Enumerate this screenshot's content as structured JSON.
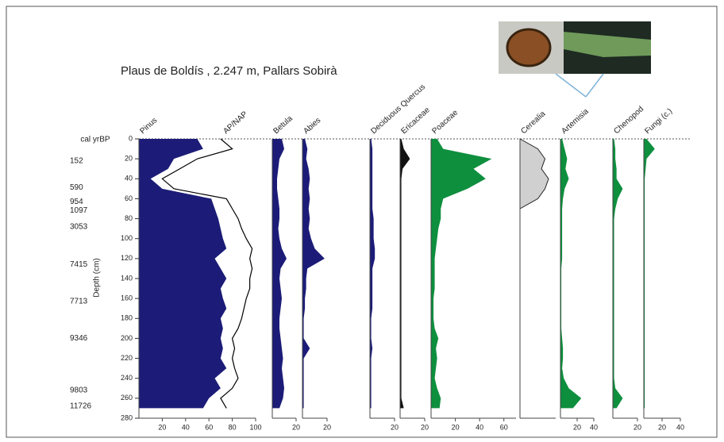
{
  "chart_data": {
    "type": "pollen-diagram",
    "title": "Plaus de Boldís , 2.247 m, Pallars Sobirà",
    "y_label": "Depth (cm)",
    "age_label": "cal yrBP",
    "ylim": [
      0,
      280
    ],
    "y_inverted": true,
    "yticks": [
      0,
      20,
      40,
      60,
      80,
      100,
      120,
      140,
      160,
      180,
      200,
      220,
      240,
      260,
      280
    ],
    "depth": [
      0,
      10,
      20,
      30,
      40,
      50,
      60,
      70,
      80,
      90,
      100,
      110,
      120,
      130,
      140,
      150,
      160,
      170,
      180,
      190,
      200,
      210,
      220,
      230,
      240,
      250,
      260,
      270
    ],
    "ages": [
      {
        "age": 152,
        "depth": 22
      },
      {
        "age": 590,
        "depth": 49
      },
      {
        "age": 954,
        "depth": 63
      },
      {
        "age": 1097,
        "depth": 72
      },
      {
        "age": 3053,
        "depth": 88
      },
      {
        "age": 7415,
        "depth": 126
      },
      {
        "age": 7713,
        "depth": 163
      },
      {
        "age": 9346,
        "depth": 200
      },
      {
        "age": 9803,
        "depth": 252
      },
      {
        "age": 11726,
        "depth": 268
      }
    ],
    "series": [
      {
        "name": "Pinus",
        "color": "#1c1c78",
        "xlim": [
          0,
          100
        ],
        "xticks": [
          20,
          40,
          60,
          80,
          100
        ],
        "values": [
          50,
          55,
          30,
          25,
          10,
          20,
          62,
          65,
          68,
          70,
          72,
          75,
          65,
          70,
          75,
          70,
          72,
          75,
          70,
          72,
          70,
          72,
          70,
          75,
          65,
          70,
          60,
          55
        ],
        "curve": {
          "name": "AP/NAP",
          "color": "#000000",
          "values": [
            70,
            80,
            50,
            35,
            20,
            30,
            75,
            80,
            85,
            88,
            92,
            97,
            95,
            97,
            95,
            95,
            92,
            90,
            88,
            85,
            80,
            82,
            80,
            82,
            85,
            80,
            70,
            75
          ]
        }
      },
      {
        "name": "Betula",
        "color": "#1c1c78",
        "xlim": [
          0,
          20
        ],
        "xticks": [
          20
        ],
        "values": [
          8,
          10,
          6,
          5,
          4,
          4,
          5,
          6,
          6,
          5,
          6,
          8,
          12,
          7,
          6,
          7,
          8,
          7,
          6,
          6,
          7,
          8,
          9,
          8,
          9,
          10,
          9,
          6
        ]
      },
      {
        "name": "Abies",
        "color": "#1c1c78",
        "xlim": [
          0,
          20
        ],
        "xticks": [
          20
        ],
        "values": [
          2,
          4,
          3,
          5,
          6,
          5,
          6,
          5,
          6,
          5,
          7,
          10,
          18,
          4,
          3,
          3,
          2,
          2,
          1,
          1,
          1,
          6,
          1,
          1,
          1,
          1,
          1,
          1
        ]
      },
      {
        "name": "Deciduous Quercus",
        "color": "#1c1c78",
        "xlim": [
          0,
          20
        ],
        "xticks": [
          20
        ],
        "values": [
          1,
          2,
          2,
          2,
          2,
          2,
          2,
          2,
          3,
          3,
          3,
          4,
          4,
          2,
          2,
          2,
          2,
          2,
          1,
          1,
          1,
          2,
          1,
          1,
          1,
          1,
          1,
          1
        ]
      },
      {
        "name": "Ericaceae",
        "color": "#111111",
        "xlim": [
          0,
          20
        ],
        "xticks": [
          20
        ],
        "values": [
          1,
          3,
          8,
          2,
          1,
          1,
          1,
          1,
          1,
          1,
          1,
          1,
          1,
          1,
          1,
          1,
          1,
          1,
          1,
          1,
          1,
          1,
          1,
          1,
          1,
          1,
          1,
          3
        ]
      },
      {
        "name": "Poaceae",
        "color": "#0e8f3e",
        "xlim": [
          0,
          70
        ],
        "xticks": [
          20,
          40,
          60
        ],
        "values": [
          5,
          10,
          50,
          35,
          45,
          30,
          10,
          8,
          8,
          6,
          5,
          4,
          3,
          3,
          3,
          3,
          2,
          2,
          2,
          3,
          6,
          4,
          5,
          4,
          3,
          5,
          8,
          7
        ]
      },
      {
        "name": "Cerealia",
        "color": "#d0d0d0",
        "xlim": [
          0,
          10
        ],
        "values": [
          0,
          5,
          7,
          6,
          8,
          7,
          5,
          0,
          0,
          0,
          0,
          0,
          0,
          0,
          0,
          0,
          0,
          0,
          0,
          0,
          0,
          0,
          0,
          0,
          0,
          0,
          0,
          0
        ]
      },
      {
        "name": "Artemisia",
        "color": "#0e8f3e",
        "xlim": [
          0,
          40
        ],
        "xticks": [
          20,
          40
        ],
        "values": [
          2,
          5,
          8,
          6,
          10,
          5,
          3,
          2,
          2,
          2,
          2,
          2,
          2,
          1,
          1,
          1,
          1,
          1,
          1,
          1,
          2,
          3,
          3,
          2,
          4,
          10,
          25,
          15
        ]
      },
      {
        "name": "Chenopod",
        "color": "#0e8f3e",
        "xlim": [
          0,
          20
        ],
        "xticks": [
          20
        ],
        "values": [
          1,
          2,
          2,
          3,
          3,
          8,
          4,
          2,
          1,
          1,
          1,
          1,
          1,
          1,
          1,
          1,
          1,
          1,
          1,
          1,
          1,
          1,
          1,
          1,
          1,
          2,
          8,
          3
        ]
      },
      {
        "name": "Fungi (c.)",
        "color": "#0e8f3e",
        "xlim": [
          0,
          40
        ],
        "xticks": [
          20,
          40
        ],
        "values": [
          3,
          12,
          3,
          2,
          1,
          1,
          1,
          1,
          1,
          1,
          1,
          1,
          1,
          1,
          1,
          1,
          1,
          1,
          1,
          1,
          1,
          1,
          1,
          1,
          1,
          1,
          1,
          1
        ]
      }
    ]
  }
}
